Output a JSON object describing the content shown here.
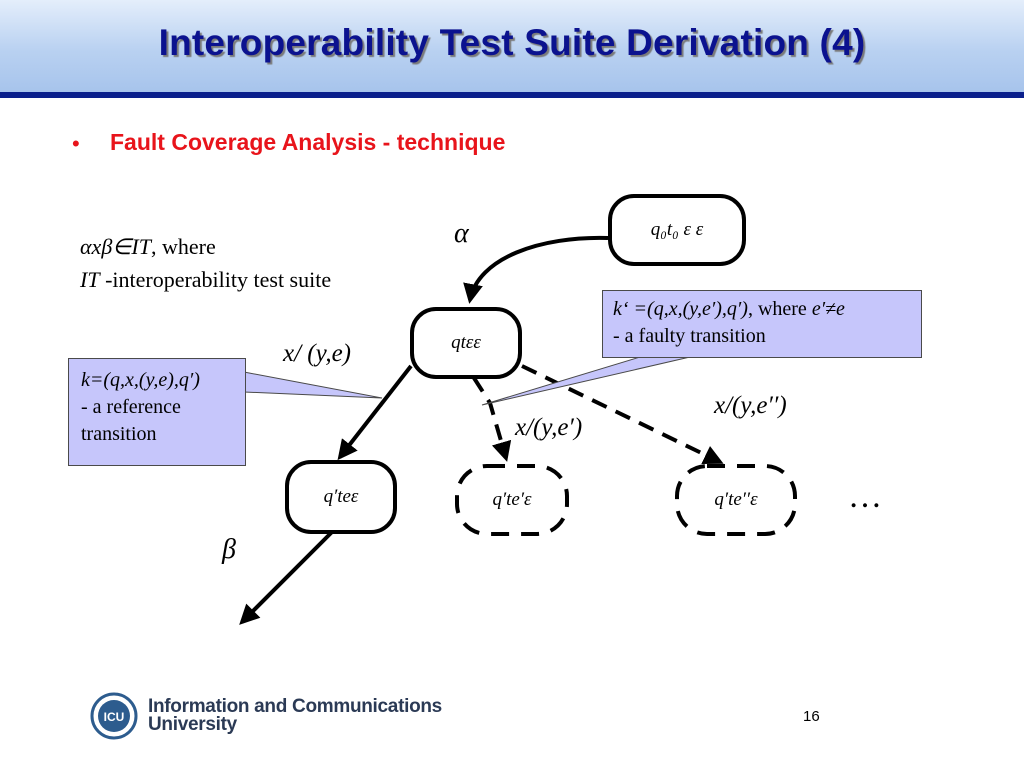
{
  "title": "Interoperability Test Suite Derivation (4)",
  "bullet": {
    "marker": "•",
    "text": "Fault Coverage Analysis - technique"
  },
  "definition": {
    "line1_math": "αxβ∈IT",
    "line1_rest": ", where",
    "line2_math": "IT",
    "line2_rest": " -interoperability test suite"
  },
  "labels": {
    "alpha": "α",
    "beta": "β",
    "edge_ref": "x/ (y,e)",
    "edge_faulty1": "x/(y,e′)",
    "edge_faulty2": "x/(y,e′′)",
    "ellipsis": "…"
  },
  "nodes": {
    "initial": "q₀t₀ ε ε",
    "current": "qtεε",
    "reference_target": "q′teε",
    "faulty_target1": "q′te′ε",
    "faulty_target2": "q′te′′ε"
  },
  "callouts": {
    "reference": {
      "line1": "k=(q,x,(y,e),q′)",
      "line2": " - a reference",
      "line3": "transition"
    },
    "faulty": {
      "line1_math": "k‘ =(q,x,(y,e′),q′)",
      "line1_rest": ", where ",
      "line1_cond": "e′≠e",
      "line2": " - a faulty transition"
    }
  },
  "footer": {
    "logo_text": "ICU",
    "university_line1": "Information and Communications",
    "university_line2": "University"
  },
  "page_number": "16",
  "colors": {
    "title": "#0b128f",
    "bullet": "#e8141b",
    "callout_fill": "#c6c6fb",
    "header_rule": "#0a1f8c"
  }
}
